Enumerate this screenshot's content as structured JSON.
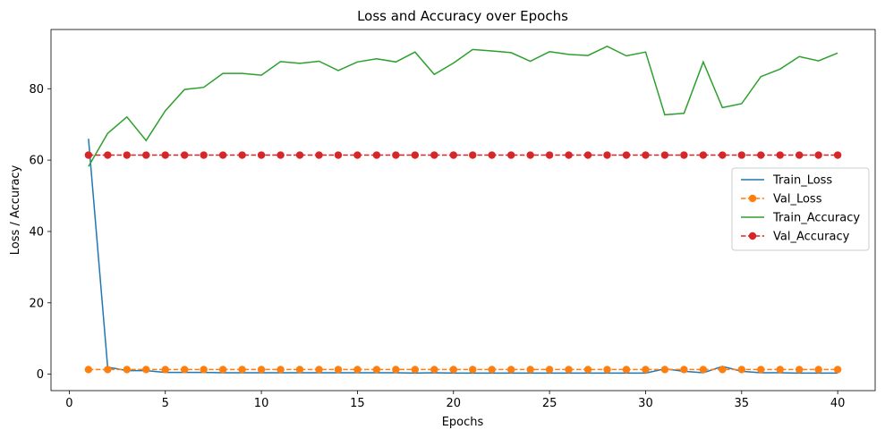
{
  "chart_data": {
    "type": "line",
    "title": "Loss and Accuracy over Epochs",
    "xlabel": "Epochs",
    "ylabel": "Loss / Accuracy",
    "xlim": [
      -0.95,
      41.95
    ],
    "ylim": [
      -4.6,
      96.6
    ],
    "xticks": [
      0,
      5,
      10,
      15,
      20,
      25,
      30,
      35,
      40
    ],
    "yticks": [
      0,
      20,
      40,
      60,
      80
    ],
    "grid": false,
    "legend_position": "center-right",
    "x": [
      1,
      2,
      3,
      4,
      5,
      6,
      7,
      8,
      9,
      10,
      11,
      12,
      13,
      14,
      15,
      16,
      17,
      18,
      19,
      20,
      21,
      22,
      23,
      24,
      25,
      26,
      27,
      28,
      29,
      30,
      31,
      32,
      33,
      34,
      35,
      36,
      37,
      38,
      39,
      40
    ],
    "series": [
      {
        "name": "Train_Loss",
        "color": "#1f77b4",
        "line_style": "solid",
        "marker": "none",
        "values": [
          66,
          2.0,
          1.0,
          1.0,
          0.5,
          0.5,
          0.5,
          0.4,
          0.4,
          0.4,
          0.4,
          0.4,
          0.4,
          0.4,
          0.4,
          0.4,
          0.4,
          0.3,
          0.4,
          0.3,
          0.3,
          0.3,
          0.3,
          0.3,
          0.3,
          0.3,
          0.3,
          0.3,
          0.3,
          0.3,
          1.5,
          0.8,
          0.4,
          2.2,
          0.8,
          0.4,
          0.4,
          0.3,
          0.3,
          0.3
        ]
      },
      {
        "name": "Val_Loss",
        "color": "#ff7f0e",
        "line_style": "dashed",
        "marker": "circle",
        "values": [
          1.3,
          1.3,
          1.3,
          1.3,
          1.3,
          1.3,
          1.3,
          1.3,
          1.3,
          1.3,
          1.3,
          1.3,
          1.3,
          1.3,
          1.3,
          1.3,
          1.3,
          1.3,
          1.3,
          1.3,
          1.3,
          1.3,
          1.3,
          1.3,
          1.3,
          1.3,
          1.3,
          1.3,
          1.3,
          1.3,
          1.3,
          1.3,
          1.3,
          1.3,
          1.3,
          1.3,
          1.3,
          1.3,
          1.3,
          1.3
        ]
      },
      {
        "name": "Train_Accuracy",
        "color": "#2ca02c",
        "line_style": "solid",
        "marker": "none",
        "values": [
          58.2,
          67.5,
          72.1,
          65.5,
          73.8,
          79.8,
          80.4,
          84.3,
          84.3,
          83.8,
          87.6,
          87.1,
          87.7,
          85.1,
          87.5,
          88.4,
          87.5,
          90.3,
          84.0,
          87.2,
          91.0,
          90.6,
          90.1,
          87.7,
          90.4,
          89.6,
          89.3,
          91.9,
          89.2,
          90.3,
          72.7,
          73.1,
          87.5,
          74.7,
          75.8,
          83.4,
          85.5,
          89.0,
          87.8,
          90.0
        ]
      },
      {
        "name": "Val_Accuracy",
        "color": "#d62728",
        "line_style": "dashed",
        "marker": "circle",
        "values": [
          61.4,
          61.4,
          61.4,
          61.4,
          61.4,
          61.4,
          61.4,
          61.4,
          61.4,
          61.4,
          61.4,
          61.4,
          61.4,
          61.4,
          61.4,
          61.4,
          61.4,
          61.4,
          61.4,
          61.4,
          61.4,
          61.4,
          61.4,
          61.4,
          61.4,
          61.4,
          61.4,
          61.4,
          61.4,
          61.4,
          61.4,
          61.4,
          61.4,
          61.4,
          61.4,
          61.4,
          61.4,
          61.4,
          61.4,
          61.4
        ]
      }
    ]
  }
}
